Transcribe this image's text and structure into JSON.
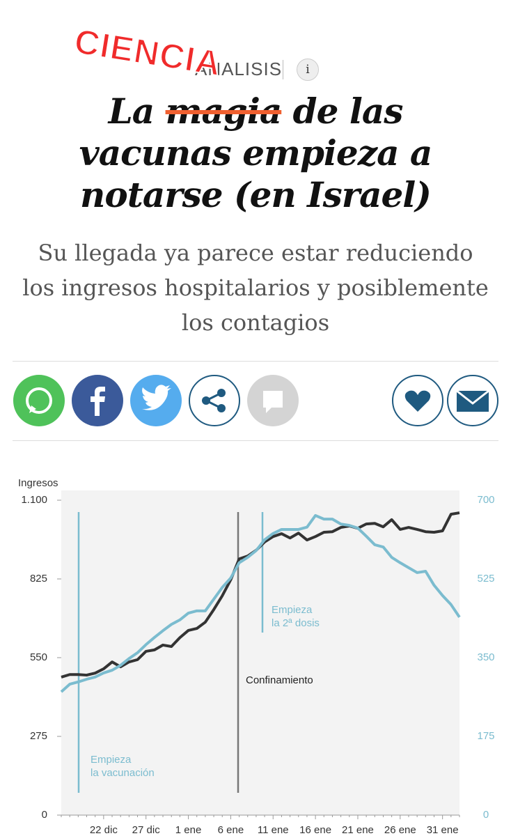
{
  "header": {
    "stamp": "CIENCIA",
    "section": "ANALISIS",
    "info": "i"
  },
  "headline": {
    "before": "La ",
    "struck": "magia",
    "after": " de las vacunas empieza a notarse (en Israel)"
  },
  "subtitle": "Su llegada ya parece estar reduciendo los ingresos hospitalarios y posiblemente los contagios",
  "chart_data": {
    "type": "line",
    "ylabel": "Ingresos",
    "categories": [
      null,
      null,
      null,
      null,
      null,
      "22 dic",
      null,
      null,
      null,
      null,
      "27 dic",
      null,
      null,
      null,
      null,
      "1 ene",
      null,
      null,
      null,
      null,
      "6 ene",
      null,
      null,
      null,
      null,
      "11 ene",
      null,
      null,
      null,
      null,
      "16 ene",
      null,
      null,
      null,
      null,
      "21 ene",
      null,
      null,
      null,
      null,
      "26 ene",
      null,
      null,
      null,
      null,
      "31 ene",
      null,
      null
    ],
    "series": [
      {
        "color": "#333333",
        "values": [
          482,
          491,
          491,
          489,
          496,
          511,
          535,
          518,
          535,
          543,
          572,
          577,
          594,
          589,
          620,
          645,
          652,
          674,
          718,
          766,
          822,
          895,
          905,
          925,
          954,
          973,
          983,
          968,
          985,
          961,
          973,
          988,
          990,
          1005,
          1010,
          1002,
          1017,
          1019,
          1007,
          1032,
          998,
          1005,
          998,
          990,
          988,
          993,
          1051,
          1056
        ]
      },
      {
        "color": "#7bbccf",
        "axis": "y2",
        "values": [
          274,
          291,
          296,
          302,
          307,
          316,
          322,
          333,
          348,
          361,
          379,
          395,
          410,
          424,
          434,
          449,
          454,
          454,
          480,
          506,
          527,
          561,
          573,
          588,
          612,
          626,
          635,
          635,
          635,
          640,
          666,
          658,
          658,
          647,
          644,
          638,
          620,
          601,
          596,
          573,
          561,
          550,
          539,
          542,
          511,
          488,
          468,
          440
        ]
      }
    ],
    "ylim": [
      0,
      1100
    ],
    "yticks": [
      0,
      275,
      550,
      825,
      {
        "value": 1100,
        "label": "1.100"
      }
    ],
    "y2lim": [
      0,
      700
    ],
    "y2ticks": [
      0,
      175,
      350,
      525,
      700
    ],
    "annotations": [
      {
        "lines": [
          "Empieza",
          "la vacunación"
        ],
        "color": "#7bbccf"
      },
      {
        "lines": [
          "Confinamiento"
        ],
        "color": "#777777"
      },
      {
        "lines": [
          "Empieza",
          "la 2ª dosis"
        ],
        "color": "#7bbccf"
      }
    ]
  }
}
